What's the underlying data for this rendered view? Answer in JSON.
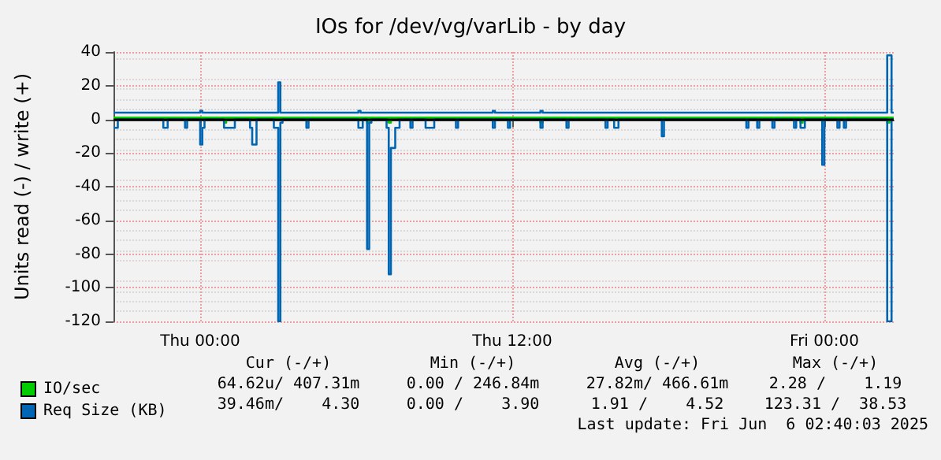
{
  "chart_data": {
    "type": "step",
    "title": "IOs for /dev/vg/varLib - by day",
    "ylabel": "Units read (-) / write (+)",
    "xlim": [
      "2025-06-04T20:40",
      "2025-06-06T02:40"
    ],
    "xticks": [
      {
        "value": "2025-06-05T00:00",
        "label": "Thu 00:00"
      },
      {
        "value": "2025-06-05T12:00",
        "label": "Thu 12:00"
      },
      {
        "value": "2025-06-06T00:00",
        "label": "Fri 00:00"
      }
    ],
    "ylim": [
      -120,
      40
    ],
    "yticks": [
      -120,
      -100,
      -80,
      -60,
      -40,
      -20,
      0,
      20,
      40
    ],
    "grid": true,
    "legend": "bottom left",
    "marker": "none",
    "line_style": "solid",
    "ref_lines": [
      {
        "axis": "y",
        "value": 0,
        "color": "#000000"
      }
    ],
    "annotations": [
      "Cur (-/+)",
      "Min (-/+)",
      "Avg (-/+)",
      "Max (-/+)",
      "64.62u/ 407.31m",
      "0.00 / 246.84m",
      "27.82m/ 466.61m",
      "2.28 /    1.19",
      "39.46m/    4.30",
      "0.00 /    3.90",
      "1.91 /    4.52",
      "123.31 /  38.53",
      "Last update: Fri Jun  6 02:40:03 2025"
    ],
    "series": [
      {
        "name": "IO/sec",
        "color": "#00cc00",
        "x": [
          "2025-06-04T20:40",
          "2025-06-05T06:25",
          "2025-06-05T06:30",
          "2025-06-06T02:40"
        ],
        "values": [
          1,
          1,
          1,
          1
        ]
      },
      {
        "color": "#00cc00",
        "x": [
          "2025-06-04T20:40",
          "2025-06-05T00:55",
          "2025-06-05T01:00",
          "2025-06-05T06:25",
          "2025-06-05T06:30",
          "2025-06-05T07:15",
          "2025-06-05T07:20",
          "2025-06-05T13:05",
          "2025-06-05T13:10",
          "2025-06-05T23:05",
          "2025-06-05T23:10",
          "2025-06-06T02:25",
          "2025-06-06T02:30",
          "2025-06-06T02:40"
        ],
        "values": [
          0,
          -2,
          0,
          -2,
          0,
          -2,
          0,
          -2,
          0,
          -2,
          0,
          -2,
          0,
          0
        ]
      },
      {
        "name": "Req Size (KB)",
        "color": "#0066b3",
        "x": [
          "2025-06-04T20:40",
          "2025-06-05T00:00",
          "2025-06-05T00:05",
          "2025-06-05T03:00",
          "2025-06-05T03:05",
          "2025-06-05T06:05",
          "2025-06-05T06:10",
          "2025-06-05T11:15",
          "2025-06-05T11:20",
          "2025-06-05T13:05",
          "2025-06-05T13:10",
          "2025-06-06T02:25",
          "2025-06-06T02:35",
          "2025-06-06T02:40"
        ],
        "values": [
          4,
          5,
          4,
          22,
          4,
          5,
          4,
          5,
          4,
          5,
          4,
          38,
          4,
          4
        ]
      },
      {
        "color": "#0066b3",
        "x": [
          "2025-06-04T20:40",
          "2025-06-04T20:50",
          "2025-06-04T22:35",
          "2025-06-04T22:45",
          "2025-06-04T23:25",
          "2025-06-04T23:30",
          "2025-06-05T00:00",
          "2025-06-05T00:05",
          "2025-06-05T00:10",
          "2025-06-05T00:55",
          "2025-06-05T01:20",
          "2025-06-05T01:55",
          "2025-06-05T02:00",
          "2025-06-05T02:10",
          "2025-06-05T02:50",
          "2025-06-05T03:00",
          "2025-06-05T03:05",
          "2025-06-05T03:10",
          "2025-06-05T04:05",
          "2025-06-05T04:10",
          "2025-06-05T06:05",
          "2025-06-05T06:15",
          "2025-06-05T06:25",
          "2025-06-05T06:30",
          "2025-06-05T06:35",
          "2025-06-05T07:10",
          "2025-06-05T07:15",
          "2025-06-05T07:20",
          "2025-06-05T07:30",
          "2025-06-05T07:40",
          "2025-06-05T08:05",
          "2025-06-05T08:10",
          "2025-06-05T08:40",
          "2025-06-05T09:00",
          "2025-06-05T09:50",
          "2025-06-05T09:55",
          "2025-06-05T11:15",
          "2025-06-05T11:20",
          "2025-06-05T11:50",
          "2025-06-05T11:55",
          "2025-06-05T13:05",
          "2025-06-05T13:10",
          "2025-06-05T14:05",
          "2025-06-05T14:10",
          "2025-06-05T15:35",
          "2025-06-05T15:40",
          "2025-06-05T15:55",
          "2025-06-05T16:05",
          "2025-06-05T17:45",
          "2025-06-05T17:50",
          "2025-06-05T21:00",
          "2025-06-05T21:05",
          "2025-06-05T21:25",
          "2025-06-05T21:30",
          "2025-06-05T22:00",
          "2025-06-05T22:05",
          "2025-06-05T22:50",
          "2025-06-05T22:55",
          "2025-06-05T23:05",
          "2025-06-05T23:15",
          "2025-06-05T23:55",
          "2025-06-06T00:00",
          "2025-06-06T00:30",
          "2025-06-06T00:35",
          "2025-06-06T00:45",
          "2025-06-06T00:50",
          "2025-06-06T02:25",
          "2025-06-06T02:35",
          "2025-06-06T02:40"
        ],
        "values": [
          -5,
          0,
          -5,
          0,
          -5,
          0,
          -15,
          -5,
          0,
          -5,
          0,
          -5,
          -15,
          0,
          -5,
          -120,
          -2,
          0,
          -5,
          0,
          -5,
          0,
          -77,
          -2,
          0,
          -5,
          -92,
          -17,
          -5,
          0,
          -5,
          0,
          -5,
          0,
          -5,
          0,
          -5,
          0,
          -5,
          0,
          -5,
          0,
          -5,
          0,
          -5,
          0,
          -5,
          0,
          -10,
          0,
          -5,
          0,
          -5,
          0,
          -5,
          0,
          -5,
          0,
          -5,
          0,
          -27,
          0,
          -5,
          0,
          -5,
          0,
          -120,
          0,
          0
        ]
      }
    ]
  }
}
